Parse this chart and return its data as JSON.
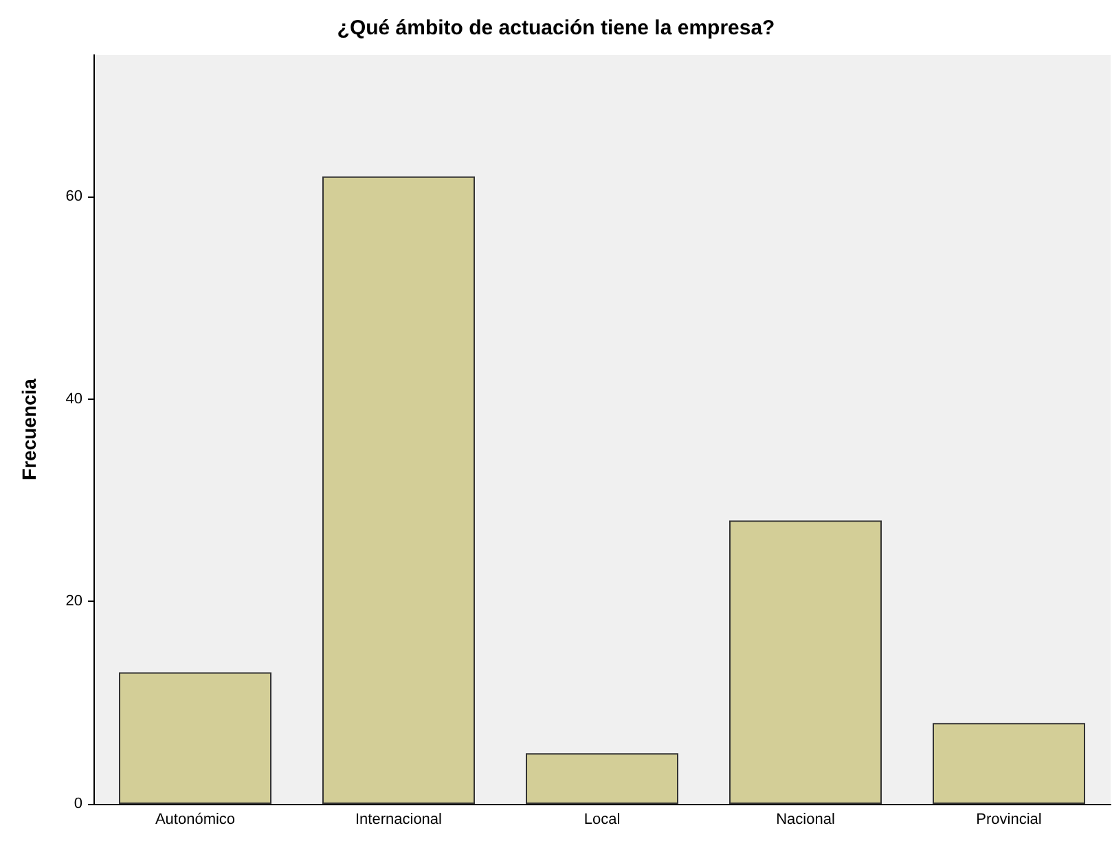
{
  "chart_data": {
    "type": "bar",
    "title": "¿Qué ámbito de actuación tiene la empresa?",
    "ylabel": "Frecuencia",
    "categories": [
      "Autonómico",
      "Internacional",
      "Local",
      "Nacional",
      "Provincial"
    ],
    "values": [
      13,
      62,
      5,
      28,
      8
    ],
    "color": "#d3ce97",
    "ylim": [
      0,
      74
    ],
    "yticks": [
      0,
      20,
      40,
      60
    ],
    "grid": false
  }
}
